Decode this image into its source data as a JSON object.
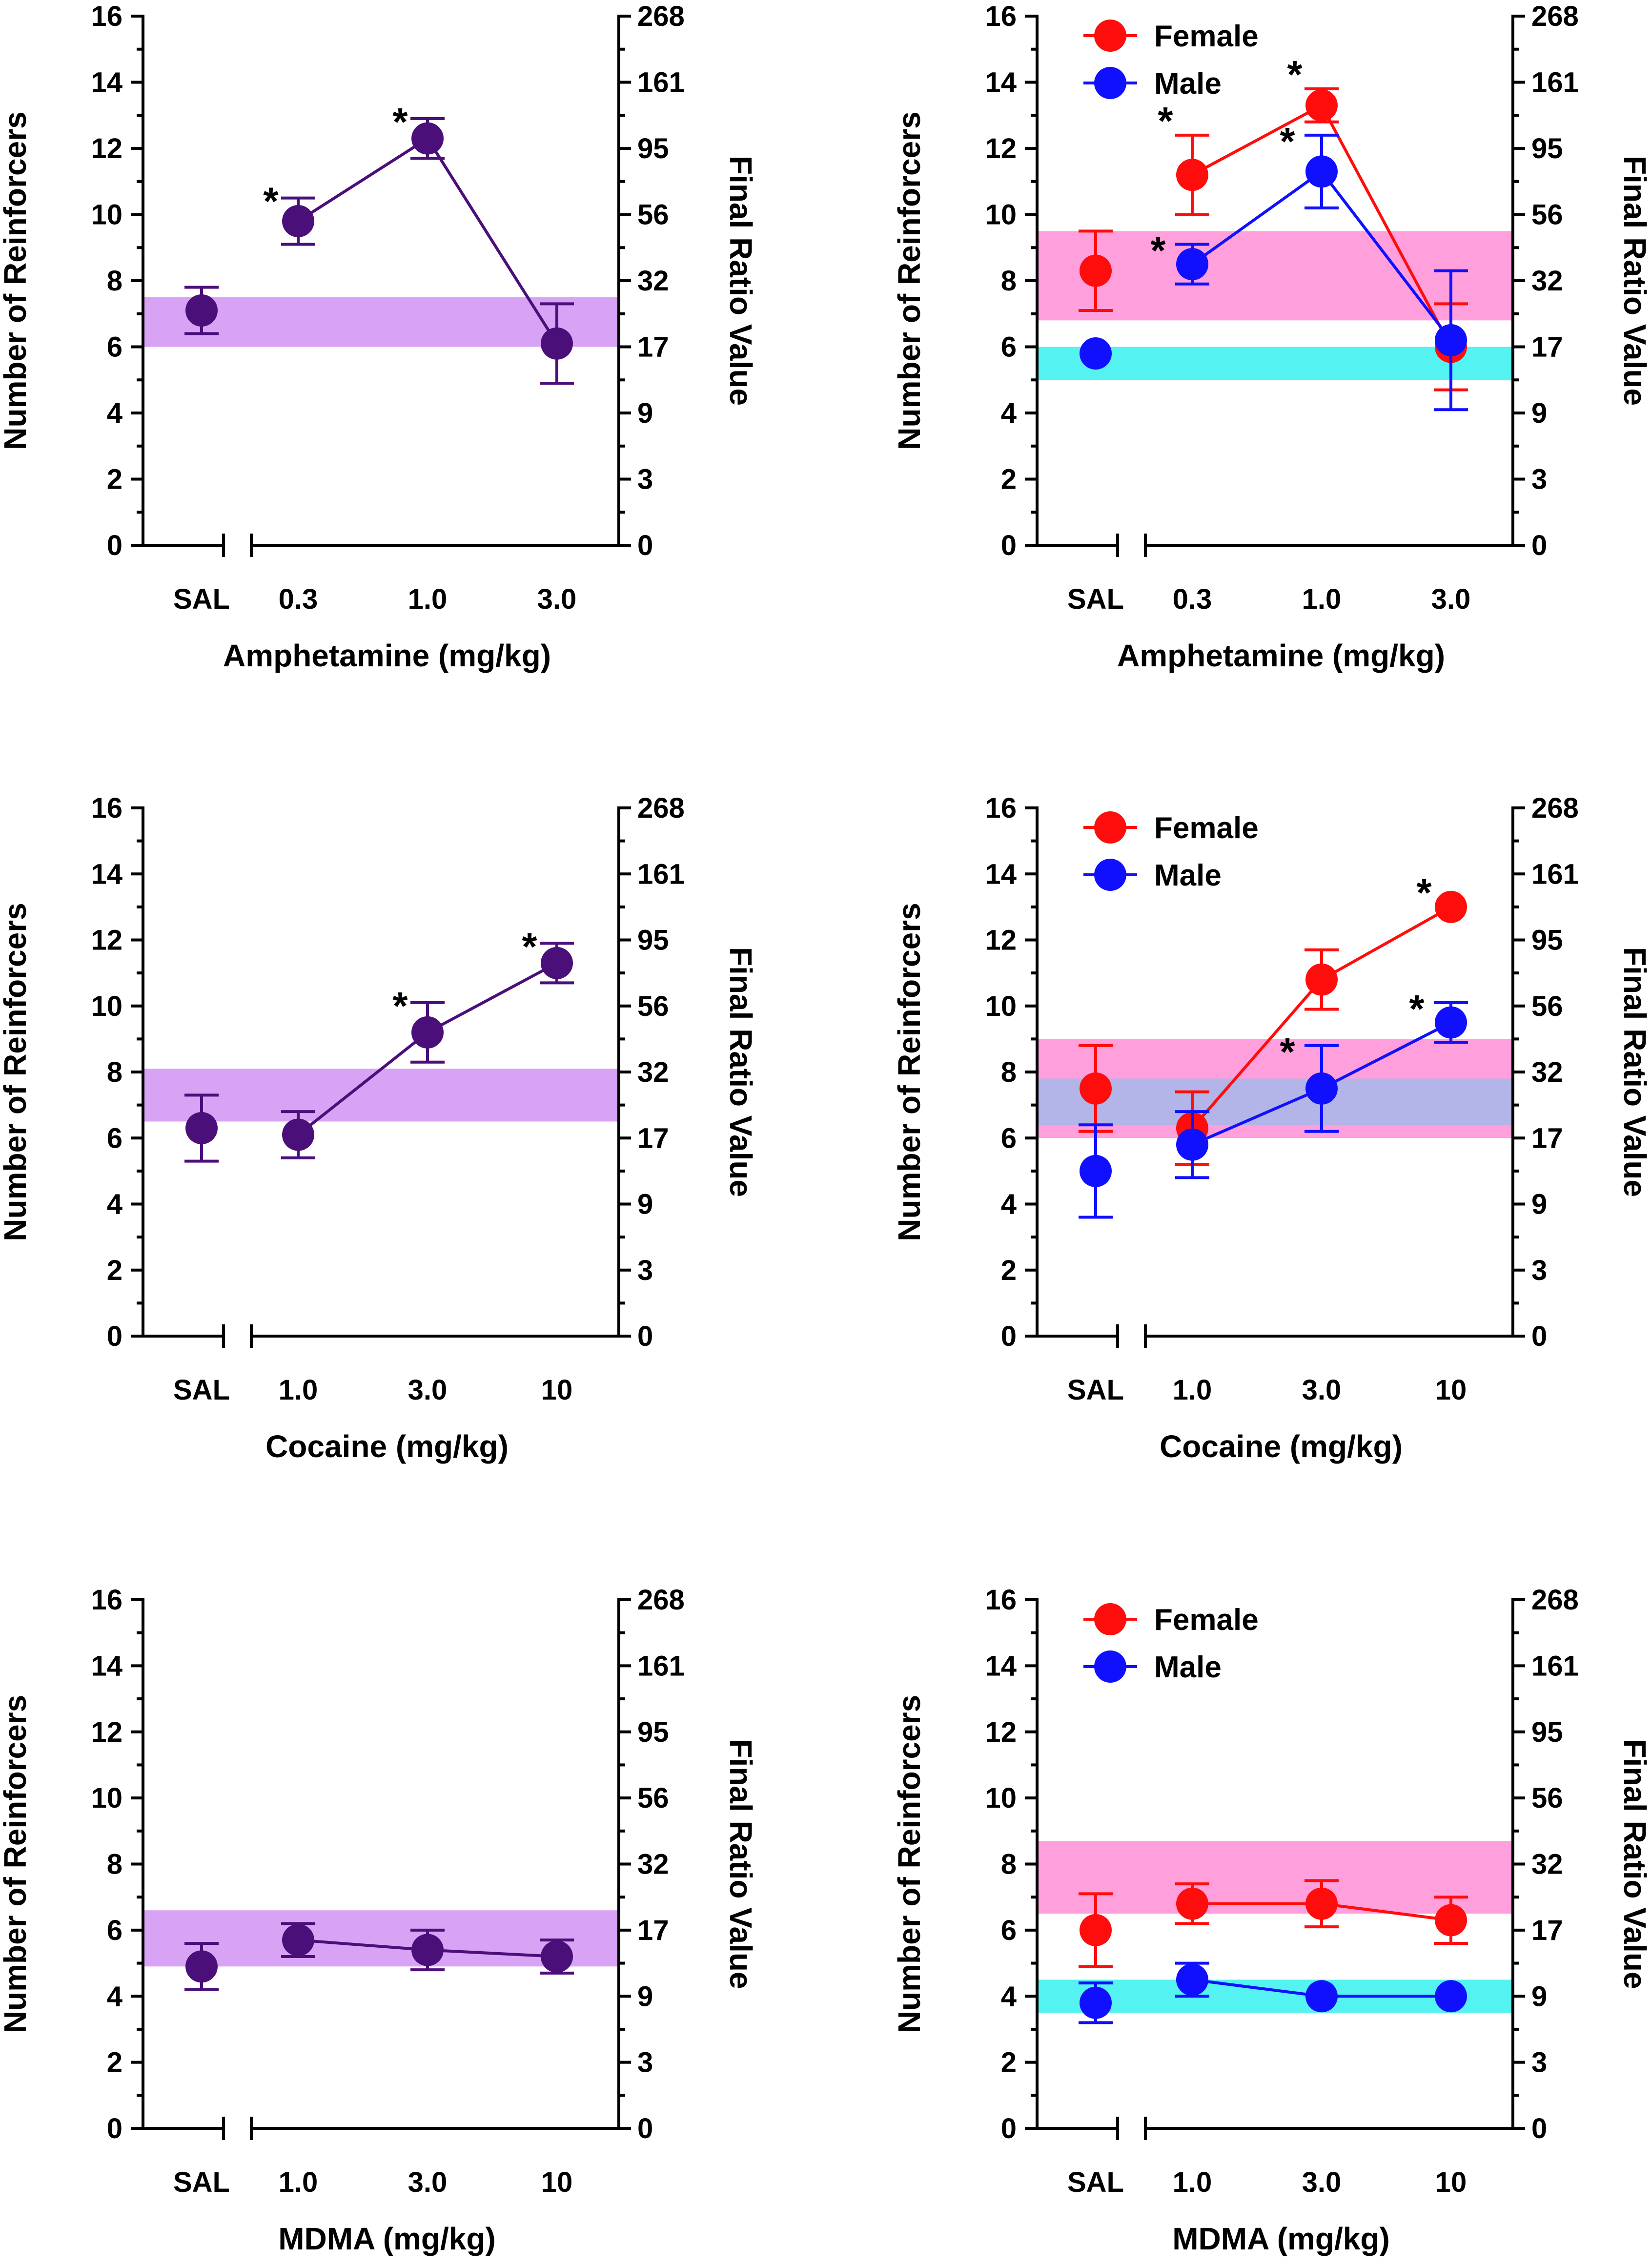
{
  "axes": {
    "left_label": "Number of Reinforcers",
    "right_label": "Final Ratio Value",
    "left_ticks": [
      "0",
      "2",
      "4",
      "6",
      "8",
      "10",
      "12",
      "14",
      "16"
    ],
    "right_ticks": [
      "0",
      "3",
      "9",
      "17",
      "32",
      "56",
      "95",
      "161",
      "268"
    ],
    "ylim": [
      0,
      16
    ]
  },
  "colors": {
    "combined": "#4b0f7a",
    "combined_band": "#d9a3f5",
    "female": "#ff0d0d",
    "female_band": "#ff9fdc",
    "male": "#1010ff",
    "male_band": "#55f2f2",
    "overlap_band": "#b3b4e8"
  },
  "chart_data": [
    {
      "type": "line",
      "panel": "amphetamine-combined",
      "xlabel": "Amphetamine (mg/kg)",
      "categories": [
        "SAL",
        "0.3",
        "1.0",
        "3.0"
      ],
      "series": [
        {
          "name": "",
          "values": [
            7.1,
            9.8,
            12.3,
            6.1
          ],
          "err": [
            0.7,
            0.7,
            0.6,
            1.2
          ],
          "sig": [
            "",
            "*",
            "*",
            ""
          ],
          "band": [
            6.0,
            7.5
          ]
        }
      ]
    },
    {
      "type": "line",
      "panel": "amphetamine-sex",
      "xlabel": "Amphetamine (mg/kg)",
      "categories": [
        "SAL",
        "0.3",
        "1.0",
        "3.0"
      ],
      "series": [
        {
          "name": "Female",
          "values": [
            8.3,
            11.2,
            13.3,
            6.0
          ],
          "err": [
            1.2,
            1.2,
            0.5,
            1.3
          ],
          "sig": [
            "",
            "*",
            "*",
            ""
          ],
          "band": [
            6.8,
            9.5
          ]
        },
        {
          "name": "Male",
          "values": [
            5.8,
            8.5,
            11.3,
            6.2
          ],
          "err": [
            0.0,
            0.6,
            1.1,
            2.1
          ],
          "sig": [
            "",
            "*",
            "*",
            ""
          ],
          "band": [
            5.0,
            6.0
          ]
        }
      ]
    },
    {
      "type": "line",
      "panel": "cocaine-combined",
      "xlabel": "Cocaine (mg/kg)",
      "categories": [
        "SAL",
        "1.0",
        "3.0",
        "10"
      ],
      "series": [
        {
          "name": "",
          "values": [
            6.3,
            6.1,
            9.2,
            11.3
          ],
          "err": [
            1.0,
            0.7,
            0.9,
            0.6
          ],
          "sig": [
            "",
            "",
            "*",
            "*"
          ],
          "band": [
            6.5,
            8.1
          ]
        }
      ]
    },
    {
      "type": "line",
      "panel": "cocaine-sex",
      "xlabel": "Cocaine (mg/kg)",
      "categories": [
        "SAL",
        "1.0",
        "3.0",
        "10"
      ],
      "series": [
        {
          "name": "Female",
          "values": [
            7.5,
            6.3,
            10.8,
            13.0
          ],
          "err": [
            1.3,
            1.1,
            0.9,
            0.0
          ],
          "sig": [
            "",
            "",
            "",
            "*"
          ],
          "band": [
            6.0,
            9.0
          ]
        },
        {
          "name": "Male",
          "values": [
            5.0,
            5.8,
            7.5,
            9.5
          ],
          "err": [
            1.4,
            1.0,
            1.3,
            0.6
          ],
          "sig": [
            "",
            "",
            "*",
            "*"
          ],
          "band": [
            6.4,
            7.8
          ]
        }
      ]
    },
    {
      "type": "line",
      "panel": "mdma-combined",
      "xlabel": "MDMA (mg/kg)",
      "categories": [
        "SAL",
        "1.0",
        "3.0",
        "10"
      ],
      "series": [
        {
          "name": "",
          "values": [
            4.9,
            5.7,
            5.4,
            5.2
          ],
          "err": [
            0.7,
            0.5,
            0.6,
            0.5
          ],
          "sig": [
            "",
            "",
            "",
            ""
          ],
          "band": [
            4.9,
            6.6
          ]
        }
      ]
    },
    {
      "type": "line",
      "panel": "mdma-sex",
      "xlabel": "MDMA (mg/kg)",
      "categories": [
        "SAL",
        "1.0",
        "3.0",
        "10"
      ],
      "series": [
        {
          "name": "Female",
          "values": [
            6.0,
            6.8,
            6.8,
            6.3
          ],
          "err": [
            1.1,
            0.6,
            0.7,
            0.7
          ],
          "sig": [
            "",
            "",
            "",
            ""
          ],
          "band": [
            6.5,
            8.7
          ]
        },
        {
          "name": "Male",
          "values": [
            3.8,
            4.5,
            4.0,
            4.0
          ],
          "err": [
            0.6,
            0.5,
            0.0,
            0.0
          ],
          "sig": [
            "",
            "",
            "",
            ""
          ],
          "band": [
            3.5,
            4.5
          ]
        }
      ]
    }
  ]
}
